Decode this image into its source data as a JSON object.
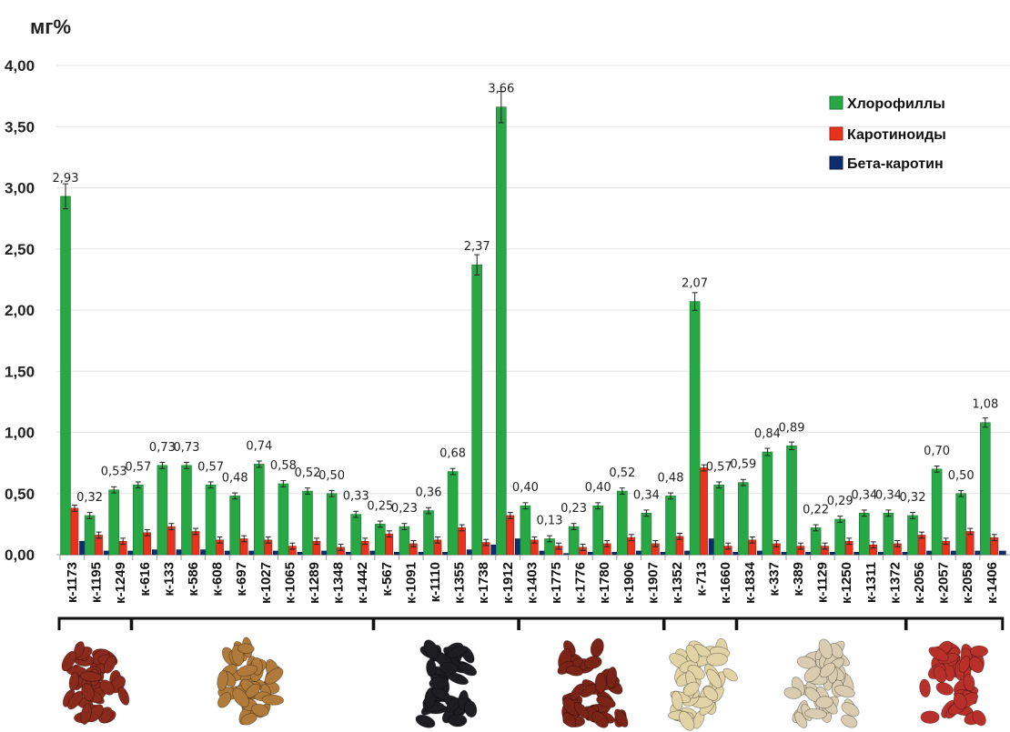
{
  "chart_data": {
    "type": "bar",
    "unit_label": "мг%",
    "ylim": [
      0,
      4.0
    ],
    "y_ticks": [
      "0,00",
      "0,50",
      "1,00",
      "1,50",
      "2,00",
      "2,50",
      "3,00",
      "3,50",
      "4,00"
    ],
    "grid": true,
    "legend_position": "top-right",
    "colors": {
      "chlorophyll": "#27a844",
      "carotenoids": "#e8321e",
      "beta": "#0c2e6e"
    },
    "categories": [
      "к-1173",
      "к-1195",
      "к-1249",
      "к-616",
      "к-133",
      "к-586",
      "к-608",
      "к-697",
      "к-1027",
      "к-1065",
      "к-1289",
      "к-1348",
      "к-1442",
      "к-567",
      "к-1091",
      "к-1110",
      "к-1355",
      "к-1738",
      "к-1912",
      "к-1403",
      "к-1775",
      "к-1776",
      "к-1780",
      "к-1906",
      "к-1907",
      "к-1352",
      "к-713",
      "к-1660",
      "к-1834",
      "к-337",
      "к-389",
      "к-1129",
      "к-1250",
      "к-1311",
      "к-1372",
      "к-2056",
      "к-2057",
      "к-2058",
      "к-1406"
    ],
    "series": [
      {
        "name": "Хлорофиллы",
        "values": [
          2.93,
          0.32,
          0.53,
          0.57,
          0.73,
          0.73,
          0.57,
          0.48,
          0.74,
          0.58,
          0.52,
          0.5,
          0.33,
          0.25,
          0.23,
          0.36,
          0.68,
          2.37,
          3.66,
          0.4,
          0.13,
          0.23,
          0.4,
          0.52,
          0.34,
          0.48,
          2.07,
          0.57,
          0.59,
          0.84,
          0.89,
          0.22,
          0.29,
          0.34,
          0.34,
          0.32,
          0.7,
          0.5,
          1.08
        ]
      },
      {
        "name": "Каротиноиды",
        "values": [
          0.38,
          0.16,
          0.11,
          0.18,
          0.23,
          0.19,
          0.12,
          0.13,
          0.12,
          0.07,
          0.11,
          0.06,
          0.11,
          0.17,
          0.09,
          0.12,
          0.22,
          0.1,
          0.32,
          0.12,
          0.07,
          0.06,
          0.09,
          0.14,
          0.09,
          0.15,
          0.71,
          0.07,
          0.12,
          0.09,
          0.07,
          0.07,
          0.11,
          0.08,
          0.09,
          0.16,
          0.11,
          0.19,
          0.14
        ]
      },
      {
        "name": "Бета-каротин",
        "values": [
          0.11,
          0.03,
          0.03,
          0.04,
          0.04,
          0.04,
          0.03,
          0.03,
          0.03,
          0.02,
          0.03,
          0.02,
          0.03,
          0.02,
          0.02,
          0.02,
          0.04,
          0.08,
          0.13,
          0.03,
          0.01,
          0.02,
          0.02,
          0.03,
          0.02,
          0.03,
          0.13,
          0.02,
          0.03,
          0.02,
          0.02,
          0.02,
          0.02,
          0.02,
          0.02,
          0.03,
          0.03,
          0.03,
          0.03
        ]
      }
    ],
    "data_labels": [
      "2,93",
      "0,32",
      "0,53",
      "0,57",
      "0,73",
      "0,73",
      "0,57",
      "0,48",
      "0,74",
      "0,58",
      "0,52",
      "0,50",
      "0,33",
      "0,25",
      "0,23",
      "0,36",
      "0,68",
      "2,37",
      "3,66",
      "0,40",
      "0,13",
      "0,23",
      "0,40",
      "0,52",
      "0,34",
      "0,48",
      "2,07",
      "0,57",
      "0,59",
      "0,84",
      "0,89",
      "0,22",
      "0,29",
      "0,34",
      "0,34",
      "0,32",
      "0,70",
      "0,50",
      "1,08"
    ],
    "groups": [
      {
        "start": 0,
        "end": 2,
        "seed_color": "#8a2a1c"
      },
      {
        "start": 3,
        "end": 12,
        "seed_color": "#b07a3a"
      },
      {
        "start": 13,
        "end": 18,
        "seed_color": "#1d1d22"
      },
      {
        "start": 19,
        "end": 24,
        "seed_color": "#7a2418"
      },
      {
        "start": 25,
        "end": 27,
        "seed_color": "#e2d3a6"
      },
      {
        "start": 28,
        "end": 34,
        "seed_color": "#d9ccb0"
      },
      {
        "start": 35,
        "end": 38,
        "seed_color": "#b8302a"
      }
    ]
  }
}
